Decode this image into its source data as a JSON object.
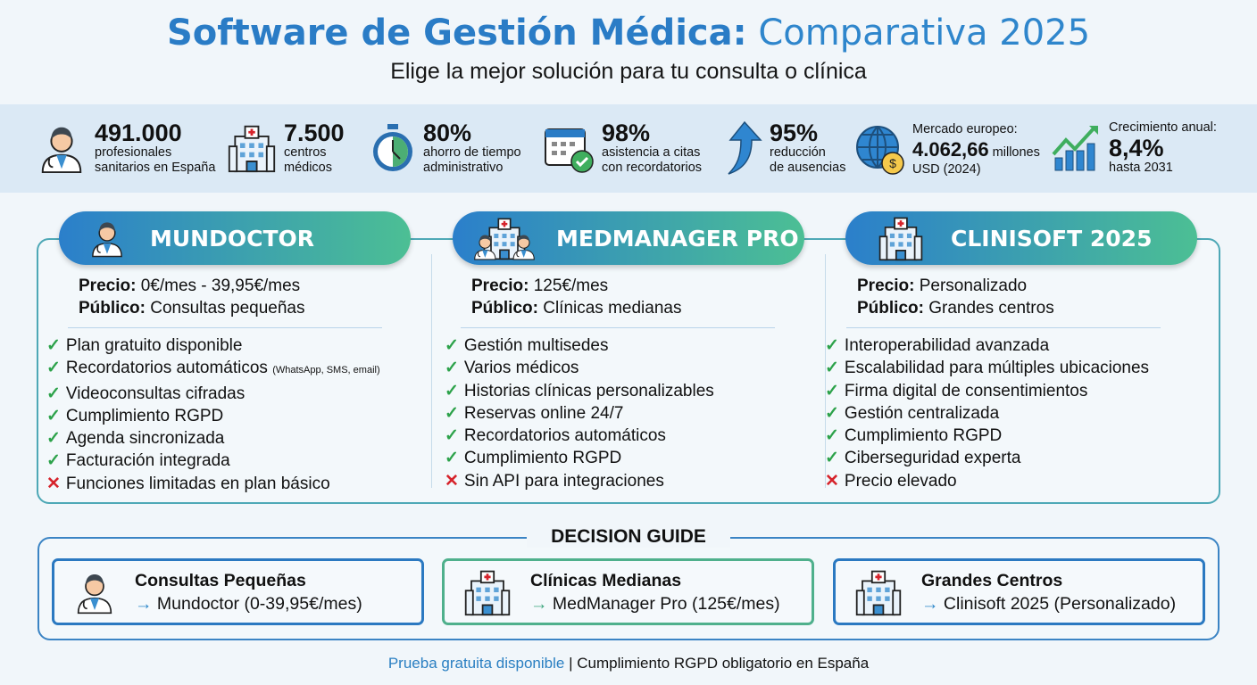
{
  "header": {
    "title_bold": "Software de Gestión Médica:",
    "title_light": "Comparativa 2025",
    "subtitle": "Elige la mejor solución para tu consulta o clínica"
  },
  "stats": [
    {
      "icon": "doctor-icon",
      "value": "491.000",
      "label1": "profesionales",
      "label2": "sanitarios en España"
    },
    {
      "icon": "hospital-icon",
      "value": "7.500",
      "label1": "centros",
      "label2": "médicos"
    },
    {
      "icon": "stopwatch-icon",
      "value": "80%",
      "label1": "ahorro de tiempo",
      "label2": "administrativo"
    },
    {
      "icon": "calendar-check-icon",
      "value": "98%",
      "label1": "asistencia a citas",
      "label2": "con recordatorios"
    },
    {
      "icon": "arrow-up-icon",
      "value": "95%",
      "label1": "reducción",
      "label2": "de ausencias"
    },
    {
      "icon": "globe-coin-icon",
      "top": "Mercado europeo:",
      "value": "4.062,66",
      "unit": " millones",
      "label2": "USD (2024)"
    },
    {
      "icon": "growth-chart-icon",
      "top": "Crecimiento anual:",
      "value": "8,4%",
      "label2": "hasta 2031"
    }
  ],
  "products": [
    {
      "name": "MUNDOCTOR",
      "price_label": "Precio:",
      "price": " 0€/mes - 39,95€/mes",
      "public_label": "Público:",
      "public": " Consultas pequeñas",
      "features": [
        {
          "ok": true,
          "text": "Plan gratuito disponible"
        },
        {
          "ok": true,
          "text": "Recordatorios automáticos",
          "note": "(WhatsApp, SMS, email)"
        },
        {
          "ok": true,
          "text": "Videoconsultas cifradas"
        },
        {
          "ok": true,
          "text": "Cumplimiento RGPD"
        },
        {
          "ok": true,
          "text": "Agenda sincronizada"
        },
        {
          "ok": true,
          "text": "Facturación integrada"
        },
        {
          "ok": false,
          "text": "Funciones limitadas en plan básico"
        }
      ]
    },
    {
      "name": "MEDMANAGER PRO",
      "price_label": "Precio:",
      "price": " 125€/mes",
      "public_label": "Público:",
      "public": " Clínicas medianas",
      "features": [
        {
          "ok": true,
          "text": "Gestión multisedes"
        },
        {
          "ok": true,
          "text": "Varios médicos"
        },
        {
          "ok": true,
          "text": "Historias clínicas personalizables"
        },
        {
          "ok": true,
          "text": "Reservas online 24/7"
        },
        {
          "ok": true,
          "text": "Recordatorios automáticos"
        },
        {
          "ok": true,
          "text": "Cumplimiento RGPD"
        },
        {
          "ok": false,
          "text": "Sin API para integraciones"
        }
      ]
    },
    {
      "name": "CLINISOFT 2025",
      "price_label": "Precio:",
      "price": " Personalizado",
      "public_label": "Público:",
      "public": " Grandes centros",
      "features": [
        {
          "ok": true,
          "text": "Interoperabilidad avanzada"
        },
        {
          "ok": true,
          "text": "Escalabilidad para múltiples ubicaciones"
        },
        {
          "ok": true,
          "text": "Firma digital de consentimientos"
        },
        {
          "ok": true,
          "text": "Gestión centralizada"
        },
        {
          "ok": true,
          "text": "Cumplimiento RGPD"
        },
        {
          "ok": true,
          "text": "Ciberseguridad experta"
        },
        {
          "ok": false,
          "text": "Precio elevado"
        }
      ]
    }
  ],
  "guide": {
    "title": "DECISION GUIDE",
    "items": [
      {
        "title": "Consultas Pequeñas",
        "arrow": "→",
        "rec": "Mundoctor (0-39,95€/mes)"
      },
      {
        "title": "Clínicas Medianas",
        "arrow": "→",
        "rec": "MedManager Pro (125€/mes)"
      },
      {
        "title": "Grandes Centros",
        "arrow": "→",
        "rec": "Clinisoft 2025 (Personalizado)"
      }
    ]
  },
  "footer": {
    "accent": "Prueba gratuita disponible",
    "rest": " | Cumplimiento RGPD obligatorio en España"
  },
  "colors": {
    "primary": "#2a7cc6",
    "accent_green": "#4cbf94",
    "check": "#2ca24a",
    "cross": "#d6232b"
  }
}
